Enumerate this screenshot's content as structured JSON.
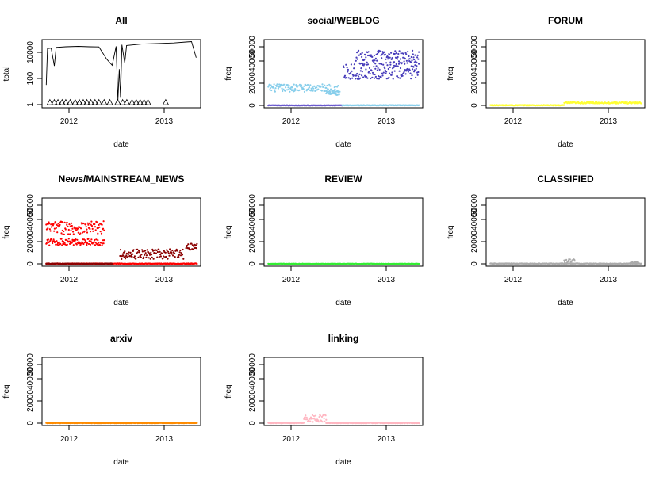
{
  "chart_data": [
    {
      "type": "line",
      "title": "All",
      "xlabel": "date",
      "ylabel": "total",
      "y_scale": "log",
      "x_ticks": [
        "2012",
        "2013"
      ],
      "y_ticks": [
        "1",
        "100",
        "10000"
      ],
      "xlim": [
        "2011-09-15",
        "2013-05-15"
      ],
      "ylim": [
        0.5,
        100000
      ],
      "series": [
        {
          "style": "line",
          "color": "#000000",
          "points": [
            [
              "2011-10-01",
              30
            ],
            [
              "2011-10-06",
              20000
            ],
            [
              "2011-10-20",
              22000
            ],
            [
              "2011-11-01",
              900
            ],
            [
              "2011-11-08",
              25000
            ],
            [
              "2011-12-15",
              28000
            ],
            [
              "2012-02-01",
              30000
            ],
            [
              "2012-03-15",
              28000
            ],
            [
              "2012-04-20",
              27000
            ],
            [
              "2012-05-20",
              3000
            ],
            [
              "2012-06-10",
              1000
            ],
            [
              "2012-06-25",
              30000
            ],
            [
              "2012-07-02",
              2
            ],
            [
              "2012-07-07",
              500
            ],
            [
              "2012-07-12",
              3
            ],
            [
              "2012-07-17",
              40000
            ],
            [
              "2012-07-28",
              1500
            ],
            [
              "2012-08-04",
              35000
            ],
            [
              "2012-10-01",
              45000
            ],
            [
              "2012-12-01",
              50000
            ],
            [
              "2013-02-01",
              55000
            ],
            [
              "2013-03-20",
              65000
            ],
            [
              "2013-04-10",
              70000
            ],
            [
              "2013-04-28",
              4000
            ]
          ]
        },
        {
          "style": "triangle",
          "color": "#000000",
          "points": [
            [
              "2011-10-15",
              1
            ],
            [
              "2011-11-01",
              1
            ],
            [
              "2011-11-15",
              1
            ],
            [
              "2011-12-01",
              1
            ],
            [
              "2011-12-15",
              1
            ],
            [
              "2012-01-01",
              1
            ],
            [
              "2012-01-20",
              1
            ],
            [
              "2012-02-05",
              1
            ],
            [
              "2012-02-20",
              1
            ],
            [
              "2012-03-05",
              1
            ],
            [
              "2012-03-20",
              1
            ],
            [
              "2012-04-05",
              1
            ],
            [
              "2012-04-20",
              1
            ],
            [
              "2012-05-10",
              1
            ],
            [
              "2012-06-01",
              1
            ],
            [
              "2012-07-01",
              1
            ],
            [
              "2012-07-20",
              1
            ],
            [
              "2012-08-05",
              1
            ],
            [
              "2012-08-25",
              1
            ],
            [
              "2012-09-10",
              1
            ],
            [
              "2012-09-25",
              1
            ],
            [
              "2012-10-10",
              1
            ],
            [
              "2012-10-25",
              1
            ],
            [
              "2013-01-01",
              1
            ]
          ]
        }
      ]
    },
    {
      "type": "scatter",
      "title": "social/WEBLOG",
      "xlabel": "date",
      "ylabel": "freq",
      "x_ticks": [
        "2012",
        "2013"
      ],
      "y_ticks": [
        "0",
        "20000",
        "40000",
        "50000"
      ],
      "xlim": [
        "2011-09-15",
        "2013-05-15"
      ],
      "ylim": [
        -2000,
        60000
      ],
      "series": [
        {
          "style": "band",
          "color": "#87ceeb",
          "from": "2011-10-01",
          "to": "2012-06-25",
          "center": 16000,
          "spread": 3500
        },
        {
          "style": "band",
          "color": "#87ceeb",
          "from": "2012-05-10",
          "to": "2012-07-01",
          "center": 11000,
          "spread": 2000
        },
        {
          "style": "band",
          "color": "#6a5acd",
          "from": "2011-10-01",
          "to": "2012-07-10",
          "center": 200,
          "spread": 200
        },
        {
          "style": "band",
          "color": "#87ceeb",
          "from": "2012-07-10",
          "to": "2013-05-01",
          "center": 300,
          "spread": 200
        },
        {
          "style": "band",
          "color": "#483dbb",
          "from": "2012-07-15",
          "to": "2013-04-30",
          "center": 31000,
          "spread": 7000
        },
        {
          "style": "band",
          "color": "#483dbb",
          "from": "2012-09-01",
          "to": "2013-04-30",
          "center": 44000,
          "spread": 6000
        }
      ]
    },
    {
      "type": "scatter",
      "title": "FORUM",
      "xlabel": "date",
      "ylabel": "freq",
      "x_ticks": [
        "2012",
        "2013"
      ],
      "y_ticks": [
        "0",
        "20000",
        "40000",
        "50000"
      ],
      "xlim": [
        "2011-09-15",
        "2013-05-15"
      ],
      "ylim": [
        -2000,
        60000
      ],
      "series": [
        {
          "style": "band",
          "color": "#ffff33",
          "from": "2011-10-01",
          "to": "2012-07-10",
          "center": 300,
          "spread": 300
        },
        {
          "style": "band",
          "color": "#ffff33",
          "from": "2012-07-10",
          "to": "2013-05-01",
          "center": 2500,
          "spread": 700
        }
      ]
    },
    {
      "type": "scatter",
      "title": "News/MAINSTREAM_NEWS",
      "xlabel": "date",
      "ylabel": "freq",
      "x_ticks": [
        "2012",
        "2013"
      ],
      "y_ticks": [
        "0",
        "20000",
        "40000",
        "50000"
      ],
      "xlim": [
        "2011-09-15",
        "2013-05-15"
      ],
      "ylim": [
        -2000,
        60000
      ],
      "series": [
        {
          "style": "band",
          "color": "#ff0000",
          "from": "2011-10-01",
          "to": "2012-05-10",
          "center": 33000,
          "spread": 6000
        },
        {
          "style": "band",
          "color": "#ff0000",
          "from": "2011-10-01",
          "to": "2012-05-10",
          "center": 20000,
          "spread": 3000
        },
        {
          "style": "band",
          "color": "#ff0000",
          "from": "2011-10-01",
          "to": "2013-05-01",
          "center": 300,
          "spread": 300
        },
        {
          "style": "band",
          "color": "#8b0000",
          "from": "2012-07-10",
          "to": "2013-03-10",
          "center": 9000,
          "spread": 4500
        },
        {
          "style": "band",
          "color": "#8b0000",
          "from": "2013-03-20",
          "to": "2013-05-01",
          "center": 16000,
          "spread": 3000
        },
        {
          "style": "band",
          "color": "#8b0000",
          "from": "2011-10-01",
          "to": "2012-06-10",
          "center": 300,
          "spread": 250
        }
      ]
    },
    {
      "type": "scatter",
      "title": "REVIEW",
      "xlabel": "date",
      "ylabel": "freq",
      "x_ticks": [
        "2012",
        "2013"
      ],
      "y_ticks": [
        "0",
        "20000",
        "40000",
        "50000"
      ],
      "xlim": [
        "2011-09-15",
        "2013-05-15"
      ],
      "ylim": [
        -2000,
        60000
      ],
      "series": [
        {
          "style": "band",
          "color": "#33ee33",
          "from": "2011-10-01",
          "to": "2013-05-01",
          "center": 200,
          "spread": 200
        }
      ]
    },
    {
      "type": "scatter",
      "title": "CLASSIFIED",
      "xlabel": "date",
      "ylabel": "freq",
      "x_ticks": [
        "2012",
        "2013"
      ],
      "y_ticks": [
        "0",
        "20000",
        "40000",
        "50000"
      ],
      "xlim": [
        "2011-09-15",
        "2013-05-15"
      ],
      "ylim": [
        -2000,
        60000
      ],
      "series": [
        {
          "style": "band",
          "color": "#aaaaaa",
          "from": "2011-10-01",
          "to": "2013-05-01",
          "center": 300,
          "spread": 300
        },
        {
          "style": "band",
          "color": "#aaaaaa",
          "from": "2012-07-10",
          "to": "2012-08-20",
          "center": 2500,
          "spread": 2000
        },
        {
          "style": "band",
          "color": "#aaaaaa",
          "from": "2013-03-20",
          "to": "2013-04-20",
          "center": 1200,
          "spread": 700
        }
      ]
    },
    {
      "type": "scatter",
      "title": "arxiv",
      "xlabel": "date",
      "ylabel": "freq",
      "x_ticks": [
        "2012",
        "2013"
      ],
      "y_ticks": [
        "0",
        "20000",
        "40000",
        "50000"
      ],
      "xlim": [
        "2011-09-15",
        "2013-05-15"
      ],
      "ylim": [
        -2000,
        60000
      ],
      "series": [
        {
          "style": "band",
          "color": "#ff8c00",
          "from": "2011-10-01",
          "to": "2013-05-01",
          "center": 250,
          "spread": 200
        }
      ]
    },
    {
      "type": "scatter",
      "title": "linking",
      "xlabel": "date",
      "ylabel": "freq",
      "x_ticks": [
        "2012",
        "2013"
      ],
      "y_ticks": [
        "0",
        "20000",
        "40000",
        "50000"
      ],
      "xlim": [
        "2011-09-15",
        "2013-05-15"
      ],
      "ylim": [
        -2000,
        60000
      ],
      "series": [
        {
          "style": "band",
          "color": "#ffb6c1",
          "from": "2011-10-01",
          "to": "2012-02-15",
          "center": 300,
          "spread": 250
        },
        {
          "style": "band",
          "color": "#ffb6c1",
          "from": "2012-02-15",
          "to": "2012-05-10",
          "center": 4500,
          "spread": 3500
        },
        {
          "style": "band",
          "color": "#ffb6c1",
          "from": "2012-05-10",
          "to": "2013-05-01",
          "center": 300,
          "spread": 250
        }
      ]
    }
  ]
}
